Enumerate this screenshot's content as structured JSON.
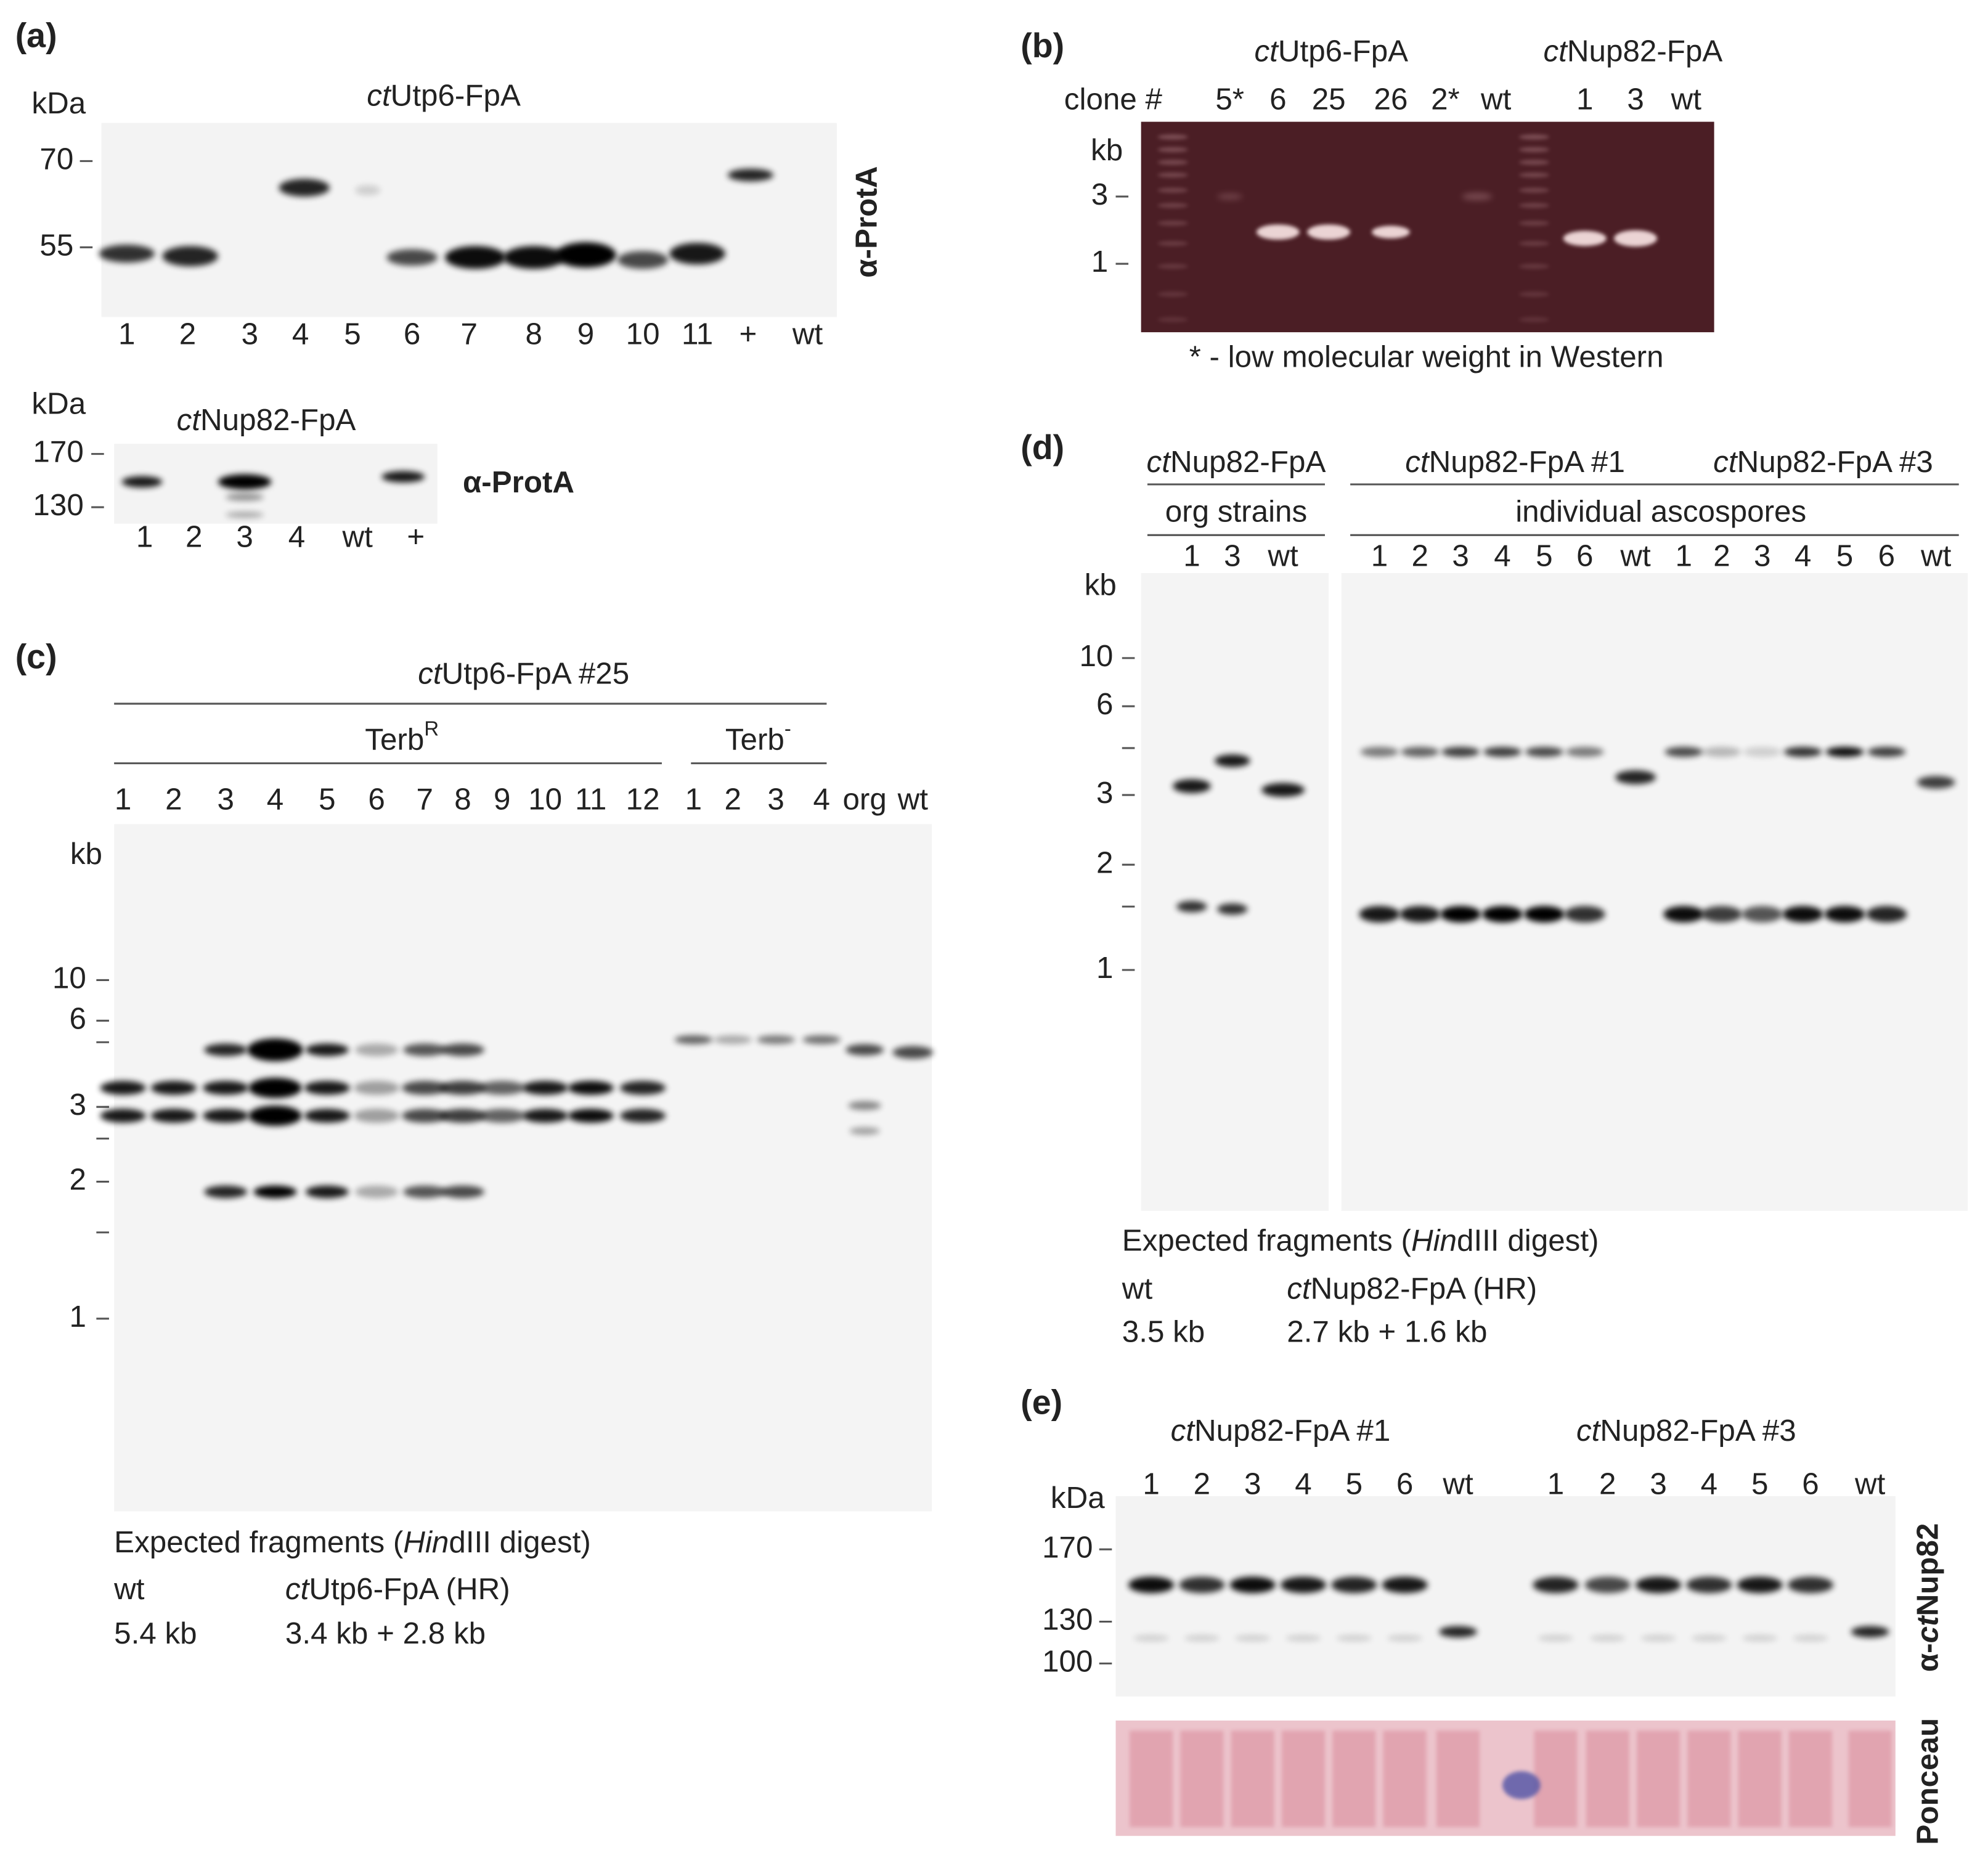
{
  "panel_a": {
    "label": "(a)",
    "blot_1": {
      "unit": "kDa",
      "title": [
        "ct",
        "Utp6-FpA"
      ],
      "markers": [
        "70",
        "55"
      ],
      "antibody": "α-ProtA",
      "lanes": [
        "1",
        "2",
        "3",
        "4",
        "5",
        "6",
        "7",
        "8",
        "9",
        "10",
        "11",
        "+",
        "wt"
      ]
    },
    "blot_2": {
      "unit": "kDa",
      "title": [
        "ct",
        "Nup82-FpA"
      ],
      "markers": [
        "170",
        "130"
      ],
      "antibody": "α-ProtA",
      "lanes": [
        "1",
        "2",
        "3",
        "4",
        "wt",
        "+"
      ]
    }
  },
  "panel_b": {
    "label": "(b)",
    "groups": [
      [
        "ct",
        "Utp6-FpA"
      ],
      [
        "ct",
        "Nup82-FpA"
      ]
    ],
    "row_label": "clone #",
    "lanes": [
      "5*",
      "6",
      "25",
      "26",
      "2*",
      "wt",
      "1",
      "3",
      "wt"
    ],
    "unit": "kb",
    "markers": [
      "3",
      "1"
    ],
    "footnote": "* - low molecular weight in Western"
  },
  "panel_c": {
    "label": "(c)",
    "title": [
      "ct",
      "Utp6-FpA #25"
    ],
    "groups": [
      [
        "Terb",
        "R"
      ],
      [
        "Terb",
        "-"
      ]
    ],
    "lanes": [
      "1",
      "2",
      "3",
      "4",
      "5",
      "6",
      "7",
      "8",
      "9",
      "10",
      "11",
      "12",
      "1",
      "2",
      "3",
      "4",
      "org",
      "wt"
    ],
    "unit": "kb",
    "markers": [
      "10",
      "6",
      "3",
      "2",
      "1"
    ],
    "expected": {
      "heading": [
        "Expected fragments (",
        "Hin",
        "dIII digest)"
      ],
      "col_1": "wt",
      "col_2": [
        "ct",
        "Utp6-FpA (HR)"
      ],
      "size_1": "5.4 kb",
      "size_2": "3.4 kb + 2.8 kb"
    }
  },
  "panel_d": {
    "label": "(d)",
    "groups": [
      [
        "ct",
        "Nup82-FpA"
      ],
      [
        "ct",
        "Nup82-FpA #1"
      ],
      [
        "ct",
        "Nup82-FpA #3"
      ]
    ],
    "subgroups": [
      "org strains",
      "individual ascospores"
    ],
    "lanes": [
      "1",
      "3",
      "wt",
      "1",
      "2",
      "3",
      "4",
      "5",
      "6",
      "wt",
      "1",
      "2",
      "3",
      "4",
      "5",
      "6",
      "wt"
    ],
    "unit": "kb",
    "markers": [
      "10",
      "6",
      "3",
      "2",
      "1"
    ],
    "expected": {
      "heading": [
        "Expected fragments (",
        "Hin",
        "dIII digest)"
      ],
      "col_1": "wt",
      "col_2": [
        "ct",
        "Nup82-FpA (HR)"
      ],
      "size_1": "3.5 kb",
      "size_2": "2.7 kb + 1.6 kb"
    }
  },
  "panel_e": {
    "label": "(e)",
    "groups": [
      [
        "ct",
        "Nup82-FpA #1"
      ],
      [
        "ct",
        "Nup82-FpA #3"
      ]
    ],
    "lanes": [
      "1",
      "2",
      "3",
      "4",
      "5",
      "6",
      "wt",
      "1",
      "2",
      "3",
      "4",
      "5",
      "6",
      "wt"
    ],
    "unit": "kDa",
    "markers": [
      "170",
      "130",
      "100"
    ],
    "antibody": [
      "α-",
      "ct",
      "Nup82"
    ],
    "stain": "Ponceau"
  }
}
